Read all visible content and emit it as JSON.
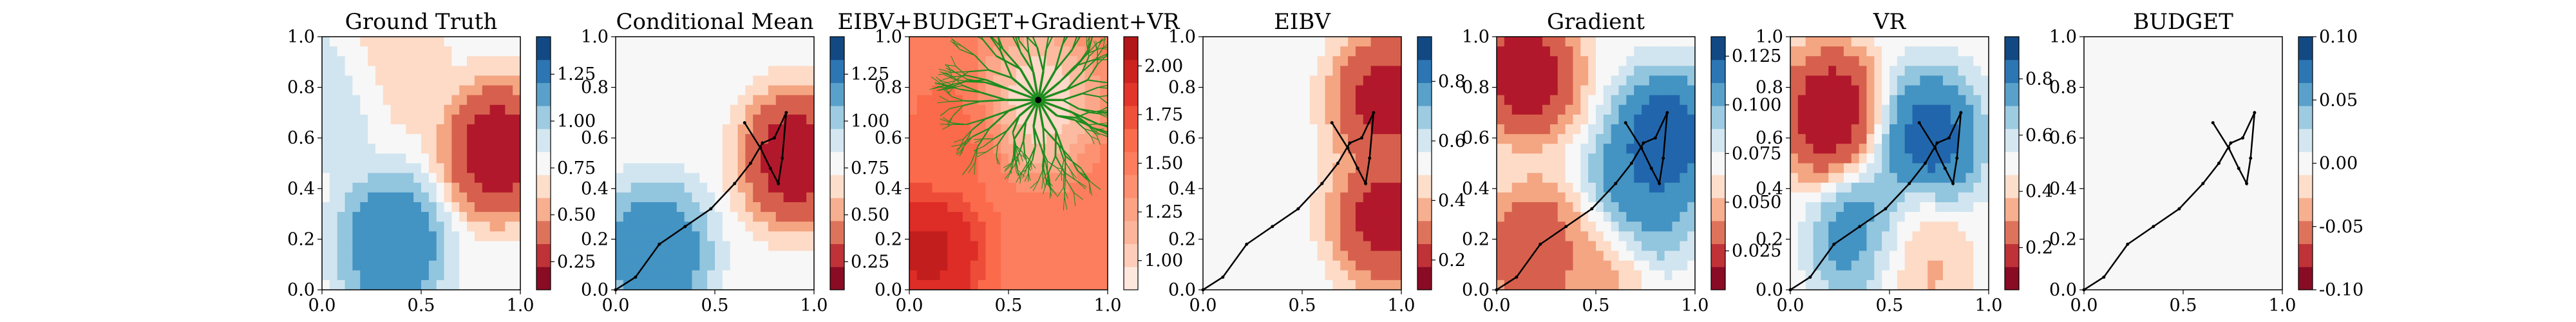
{
  "chart_data": [
    {
      "type": "heatmap",
      "title": "Ground Truth",
      "xlim": [
        0,
        1
      ],
      "ylim": [
        0,
        1
      ],
      "xticks": [
        "0.0",
        "0.5",
        "1.0"
      ],
      "yticks": [
        "0.0",
        "0.2",
        "0.4",
        "0.6",
        "0.8",
        "1.0"
      ],
      "colorbar": {
        "range": [
          0.1,
          1.45
        ],
        "ticks": [
          "0.25",
          "0.50",
          "0.75",
          "1.00",
          "1.25"
        ]
      },
      "colormap": "RdBu",
      "features": [
        {
          "x": 0.88,
          "y": 0.55,
          "value": 0.15
        },
        {
          "x": 0.35,
          "y": 0.88,
          "value": 0.6
        },
        {
          "x": 0.35,
          "y": 0.18,
          "value": 1.3
        },
        {
          "x": 0.08,
          "y": 0.75,
          "value": 0.95
        }
      ]
    },
    {
      "type": "heatmap",
      "title": "Conditional Mean",
      "xlim": [
        0,
        1
      ],
      "ylim": [
        0,
        1
      ],
      "xticks": [
        "0.0",
        "0.5",
        "1.0"
      ],
      "yticks": [
        "0.0",
        "0.2",
        "0.4",
        "0.6",
        "0.8",
        "1.0"
      ],
      "colorbar": {
        "range": [
          0.1,
          1.45
        ],
        "ticks": [
          "0.25",
          "0.50",
          "0.75",
          "1.00",
          "1.25"
        ]
      },
      "colormap": "RdBu",
      "features": [
        {
          "x": 0.9,
          "y": 0.52,
          "value": 0.15
        },
        {
          "x": 0.2,
          "y": 0.15,
          "value": 1.3
        }
      ],
      "trajectory": {
        "x": [
          0.0,
          0.1,
          0.22,
          0.35,
          0.48,
          0.6,
          0.68,
          0.74,
          0.8,
          0.86,
          0.84,
          0.82,
          0.78,
          0.73,
          0.65
        ],
        "y": [
          0.0,
          0.05,
          0.18,
          0.25,
          0.32,
          0.42,
          0.5,
          0.58,
          0.6,
          0.7,
          0.52,
          0.42,
          0.48,
          0.56,
          0.66
        ]
      }
    },
    {
      "type": "heatmap",
      "title": "EIBV+BUDGET+Gradient+VR",
      "xlim": [
        0,
        1
      ],
      "ylim": [
        0,
        1
      ],
      "xticks": [
        "0.0",
        "0.5",
        "1.0"
      ],
      "yticks": [
        "0.0",
        "0.2",
        "0.4",
        "0.6",
        "0.8",
        "1.0"
      ],
      "colorbar": {
        "range": [
          0.85,
          2.15
        ],
        "ticks": [
          "1.00",
          "1.25",
          "1.50",
          "1.75",
          "2.00"
        ]
      },
      "colormap": "Reds",
      "features": [
        {
          "x": 0.65,
          "y": 0.75,
          "value": 0.9
        },
        {
          "x": 0.1,
          "y": 0.15,
          "value": 2.05
        },
        {
          "x": 0.2,
          "y": 0.6,
          "value": 1.6
        }
      ],
      "tree_root": {
        "x": 0.65,
        "y": 0.75
      }
    },
    {
      "type": "heatmap",
      "title": "EIBV",
      "xlim": [
        0,
        1
      ],
      "ylim": [
        0,
        1
      ],
      "xticks": [
        "0.0",
        "0.5",
        "1.0"
      ],
      "yticks": [
        "0.0",
        "0.2",
        "0.4",
        "0.6",
        "0.8",
        "1.0"
      ],
      "colorbar": {
        "range": [
          0.1,
          0.95
        ],
        "ticks": [
          "0.2",
          "0.4",
          "0.6",
          "0.8"
        ]
      },
      "colormap": "RdBu",
      "features": [
        {
          "x": 0.92,
          "y": 0.75,
          "value": 0.15
        },
        {
          "x": 0.92,
          "y": 0.28,
          "value": 0.15
        }
      ],
      "trajectory": {
        "x": [
          0.0,
          0.1,
          0.22,
          0.35,
          0.48,
          0.6,
          0.68,
          0.74,
          0.8,
          0.86,
          0.84,
          0.82,
          0.78,
          0.73,
          0.65
        ],
        "y": [
          0.0,
          0.05,
          0.18,
          0.25,
          0.32,
          0.42,
          0.5,
          0.58,
          0.6,
          0.7,
          0.52,
          0.42,
          0.48,
          0.56,
          0.66
        ]
      }
    },
    {
      "type": "heatmap",
      "title": "Gradient",
      "xlim": [
        0,
        1
      ],
      "ylim": [
        0,
        1
      ],
      "xticks": [
        "0.0",
        "0.5",
        "1.0"
      ],
      "yticks": [
        "0.0",
        "0.2",
        "0.4",
        "0.6",
        "0.8",
        "1.0"
      ],
      "colorbar": {
        "range": [
          0.005,
          0.135
        ],
        "ticks": [
          "0.025",
          "0.050",
          "0.075",
          "0.100",
          "0.125"
        ]
      },
      "colormap": "RdBu",
      "features": [
        {
          "x": 0.15,
          "y": 0.85,
          "value": 0.01
        },
        {
          "x": 0.85,
          "y": 0.6,
          "value": 0.13
        },
        {
          "x": 0.7,
          "y": 0.35,
          "value": 0.12
        },
        {
          "x": 0.2,
          "y": 0.15,
          "value": 0.02
        },
        {
          "x": 0.5,
          "y": 0.1,
          "value": 0.04
        }
      ],
      "trajectory": {
        "x": [
          0.0,
          0.1,
          0.22,
          0.35,
          0.48,
          0.6,
          0.68,
          0.74,
          0.8,
          0.86,
          0.84,
          0.82,
          0.78,
          0.73,
          0.65
        ],
        "y": [
          0.0,
          0.05,
          0.18,
          0.25,
          0.32,
          0.42,
          0.5,
          0.58,
          0.6,
          0.7,
          0.52,
          0.42,
          0.48,
          0.56,
          0.66
        ]
      }
    },
    {
      "type": "heatmap",
      "title": "VR",
      "xlim": [
        0,
        1
      ],
      "ylim": [
        0,
        1
      ],
      "xticks": [
        "0.0",
        "0.5",
        "1.0"
      ],
      "yticks": [
        "0.0",
        "0.2",
        "0.4",
        "0.6",
        "0.8",
        "1.0"
      ],
      "colorbar": {
        "range": [
          0.05,
          0.95
        ],
        "ticks": [
          "0.2",
          "0.4",
          "0.6",
          "0.8"
        ]
      },
      "colormap": "RdBu",
      "features": [
        {
          "x": 0.2,
          "y": 0.7,
          "value": 0.08
        },
        {
          "x": 0.7,
          "y": 0.6,
          "value": 0.9
        },
        {
          "x": 0.4,
          "y": 0.2,
          "value": 0.85
        },
        {
          "x": 0.6,
          "y": 0.12,
          "value": 0.3
        }
      ],
      "trajectory": {
        "x": [
          0.0,
          0.1,
          0.22,
          0.35,
          0.48,
          0.6,
          0.68,
          0.74,
          0.8,
          0.86,
          0.84,
          0.82,
          0.78,
          0.73,
          0.65
        ],
        "y": [
          0.0,
          0.05,
          0.18,
          0.25,
          0.32,
          0.42,
          0.5,
          0.58,
          0.6,
          0.7,
          0.52,
          0.42,
          0.48,
          0.56,
          0.66
        ]
      }
    },
    {
      "type": "heatmap",
      "title": "BUDGET",
      "xlim": [
        0,
        1
      ],
      "ylim": [
        0,
        1
      ],
      "xticks": [
        "0.0",
        "0.5",
        "1.0"
      ],
      "yticks": [
        "0.0",
        "0.2",
        "0.4",
        "0.6",
        "0.8",
        "1.0"
      ],
      "colorbar": {
        "range": [
          -0.1,
          0.1
        ],
        "ticks": [
          "-0.10",
          "-0.05",
          "0.00",
          "0.05",
          "0.10"
        ]
      },
      "colormap": "RdBu",
      "uniform_value": 0.0,
      "trajectory": {
        "x": [
          0.0,
          0.1,
          0.22,
          0.35,
          0.48,
          0.6,
          0.68,
          0.74,
          0.8,
          0.86,
          0.84,
          0.82,
          0.78,
          0.73,
          0.65
        ],
        "y": [
          0.0,
          0.05,
          0.18,
          0.25,
          0.32,
          0.42,
          0.5,
          0.58,
          0.6,
          0.7,
          0.52,
          0.42,
          0.48,
          0.56,
          0.66
        ]
      }
    }
  ],
  "colors": {
    "diverging": [
      "#67001f",
      "#b2182b",
      "#d6604d",
      "#f4a582",
      "#fddbc7",
      "#f7f7f7",
      "#d1e5f0",
      "#92c5de",
      "#4393c3",
      "#2166ac",
      "#053061"
    ],
    "tree": "#1e8c1e",
    "trajectory": "#000000"
  }
}
